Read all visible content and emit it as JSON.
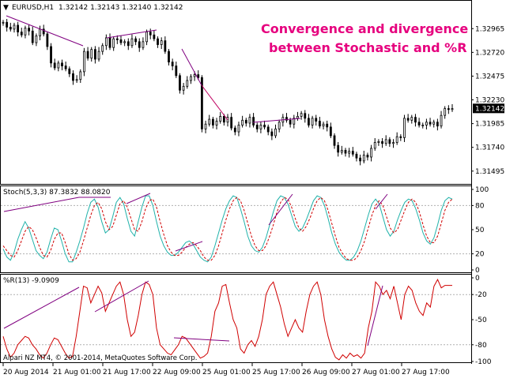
{
  "header": {
    "symbol": "EURUSD,H1",
    "ohlc": "1.32142 1.32143 1.32140 1.32142"
  },
  "annotation": [
    "Convergence and divergence",
    "between Stochastic and %R"
  ],
  "footer": "Alpari NZ MT4, © 2001-2014, MetaQuotes Software Corp.",
  "colors": {
    "candle": "#000000",
    "trendline": "#800080",
    "divergence_line": "#c00060",
    "stoch_main": "#20b2aa",
    "stoch_signal": "#d00000",
    "wpr": "#d00000",
    "annotation": "#e6007e"
  },
  "chart_data": [
    {
      "type": "candlestick",
      "label": "EURUSD,H1",
      "y_ticks": [
        "1.32965",
        "1.32720",
        "1.32475",
        "1.32230",
        "1.31985",
        "1.31740",
        "1.31495"
      ],
      "y_tick_values": [
        1.32965,
        1.3272,
        1.32475,
        1.3223,
        1.31985,
        1.3174,
        1.31495
      ],
      "ylim": [
        1.3142,
        1.3313
      ],
      "current_price": "1.32142",
      "current_value": 1.32142,
      "x_ticks": [
        "20 Aug 2014",
        "21 Aug 01:00",
        "21 Aug 17:00",
        "22 Aug 09:00",
        "25 Aug 01:00",
        "25 Aug 17:00",
        "26 Aug 09:00",
        "27 Aug 01:00",
        "27 Aug 17:00"
      ],
      "close": [
        1.3303,
        1.3298,
        1.3296,
        1.33,
        1.3293,
        1.329,
        1.3297,
        1.3294,
        1.3282,
        1.3289,
        1.3296,
        1.3291,
        1.3278,
        1.3261,
        1.3256,
        1.3261,
        1.3258,
        1.3255,
        1.325,
        1.3243,
        1.3244,
        1.3252,
        1.3273,
        1.3266,
        1.3275,
        1.3265,
        1.3273,
        1.3279,
        1.3287,
        1.3277,
        1.3286,
        1.3285,
        1.3282,
        1.3283,
        1.3279,
        1.3286,
        1.3283,
        1.3277,
        1.3283,
        1.3293,
        1.329,
        1.3286,
        1.328,
        1.3284,
        1.3273,
        1.3262,
        1.3258,
        1.3248,
        1.3233,
        1.3237,
        1.3243,
        1.3247,
        1.3249,
        1.3246,
        1.3193,
        1.3198,
        1.3203,
        1.3197,
        1.3201,
        1.3206,
        1.32,
        1.3205,
        1.3194,
        1.319,
        1.3197,
        1.3202,
        1.3199,
        1.3205,
        1.3197,
        1.3193,
        1.3197,
        1.3195,
        1.319,
        1.3186,
        1.3193,
        1.32,
        1.3205,
        1.3202,
        1.3198,
        1.3204,
        1.3206,
        1.3209,
        1.3204,
        1.3197,
        1.3204,
        1.3201,
        1.3196,
        1.3198,
        1.3195,
        1.3186,
        1.3176,
        1.3169,
        1.3171,
        1.3168,
        1.317,
        1.3167,
        1.3163,
        1.316,
        1.3166,
        1.3164,
        1.3173,
        1.3179,
        1.318,
        1.3178,
        1.3182,
        1.3178,
        1.3179,
        1.3185,
        1.3184,
        1.3204,
        1.3202,
        1.3205,
        1.32,
        1.3197,
        1.3197,
        1.32,
        1.3198,
        1.32,
        1.3196,
        1.3207,
        1.3214,
        1.3213,
        1.3214
      ]
    },
    {
      "type": "line",
      "label": "Stoch(5,3,3) 87.3832 88.0820",
      "y_ticks": [
        "100",
        "80",
        "50",
        "20",
        "0"
      ],
      "y_tick_values": [
        100,
        80,
        50,
        20,
        0
      ],
      "ylim": [
        0,
        100
      ],
      "series": [
        {
          "name": "",
          "values": [
            26,
            16,
            12,
            22,
            38,
            50,
            60,
            52,
            38,
            24,
            18,
            14,
            22,
            38,
            52,
            50,
            36,
            20,
            10,
            10,
            22,
            36,
            52,
            70,
            84,
            88,
            78,
            60,
            46,
            50,
            66,
            84,
            90,
            82,
            64,
            48,
            42,
            60,
            78,
            92,
            92,
            80,
            60,
            42,
            30,
            22,
            18,
            18,
            22,
            28,
            34,
            36,
            32,
            24,
            16,
            12,
            10,
            16,
            30,
            46,
            62,
            76,
            86,
            92,
            90,
            76,
            60,
            42,
            30,
            24,
            22,
            28,
            40,
            56,
            72,
            86,
            92,
            90,
            82,
            68,
            54,
            48,
            52,
            62,
            74,
            86,
            92,
            90,
            80,
            64,
            46,
            32,
            22,
            16,
            12,
            12,
            16,
            24,
            36,
            52,
            68,
            82,
            88,
            82,
            66,
            50,
            42,
            48,
            62,
            74,
            84,
            88,
            86,
            76,
            62,
            46,
            36,
            32,
            40,
            56,
            74,
            86,
            90,
            88
          ]
        },
        {
          "name": "",
          "values": [
            30,
            24,
            18,
            16,
            24,
            36,
            48,
            54,
            50,
            40,
            28,
            18,
            16,
            24,
            38,
            46,
            46,
            34,
            20,
            12,
            14,
            22,
            36,
            52,
            68,
            80,
            84,
            76,
            60,
            50,
            54,
            68,
            82,
            86,
            78,
            64,
            50,
            48,
            60,
            76,
            86,
            88,
            78,
            60,
            44,
            30,
            22,
            18,
            18,
            22,
            28,
            32,
            34,
            30,
            24,
            16,
            12,
            12,
            18,
            30,
            46,
            62,
            76,
            86,
            90,
            86,
            74,
            58,
            42,
            30,
            24,
            24,
            30,
            42,
            56,
            72,
            84,
            90,
            88,
            78,
            64,
            52,
            48,
            54,
            64,
            76,
            86,
            90,
            86,
            74,
            58,
            42,
            28,
            20,
            14,
            12,
            12,
            16,
            24,
            36,
            52,
            68,
            80,
            86,
            80,
            66,
            52,
            46,
            50,
            62,
            74,
            84,
            88,
            84,
            72,
            56,
            42,
            34,
            34,
            42,
            58,
            74,
            84,
            88
          ]
        }
      ]
    },
    {
      "type": "line",
      "label": "%R(13) -9.0909",
      "y_ticks": [
        "0",
        "-20",
        "-50",
        "-80",
        "-100"
      ],
      "y_tick_values": [
        0,
        -20,
        -50,
        -80,
        -100
      ],
      "ylim": [
        -100,
        0
      ],
      "series": [
        {
          "name": "",
          "values": [
            -70,
            -85,
            -95,
            -90,
            -80,
            -75,
            -70,
            -72,
            -80,
            -85,
            -92,
            -96,
            -90,
            -80,
            -72,
            -74,
            -82,
            -90,
            -96,
            -94,
            -70,
            -40,
            -10,
            -12,
            -30,
            -20,
            -10,
            -18,
            -40,
            -30,
            -20,
            -10,
            -5,
            -20,
            -50,
            -70,
            -65,
            -45,
            -20,
            -5,
            -8,
            -20,
            -60,
            -80,
            -85,
            -90,
            -92,
            -86,
            -80,
            -70,
            -72,
            -78,
            -84,
            -90,
            -96,
            -94,
            -90,
            -70,
            -40,
            -30,
            -10,
            -8,
            -30,
            -50,
            -60,
            -85,
            -90,
            -80,
            -75,
            -82,
            -70,
            -50,
            -20,
            -10,
            -5,
            -20,
            -35,
            -55,
            -70,
            -60,
            -50,
            -60,
            -65,
            -40,
            -20,
            -10,
            -5,
            -20,
            -50,
            -70,
            -85,
            -95,
            -98,
            -92,
            -96,
            -90,
            -94,
            -92,
            -96,
            -90,
            -60,
            -40,
            -5,
            -10,
            -20,
            -15,
            -25,
            -10,
            -30,
            -50,
            -20,
            -10,
            -15,
            -30,
            -40,
            -45,
            -30,
            -35,
            -10,
            -2,
            -12,
            -9.09,
            -9.09,
            -9.09
          ]
        }
      ]
    }
  ]
}
